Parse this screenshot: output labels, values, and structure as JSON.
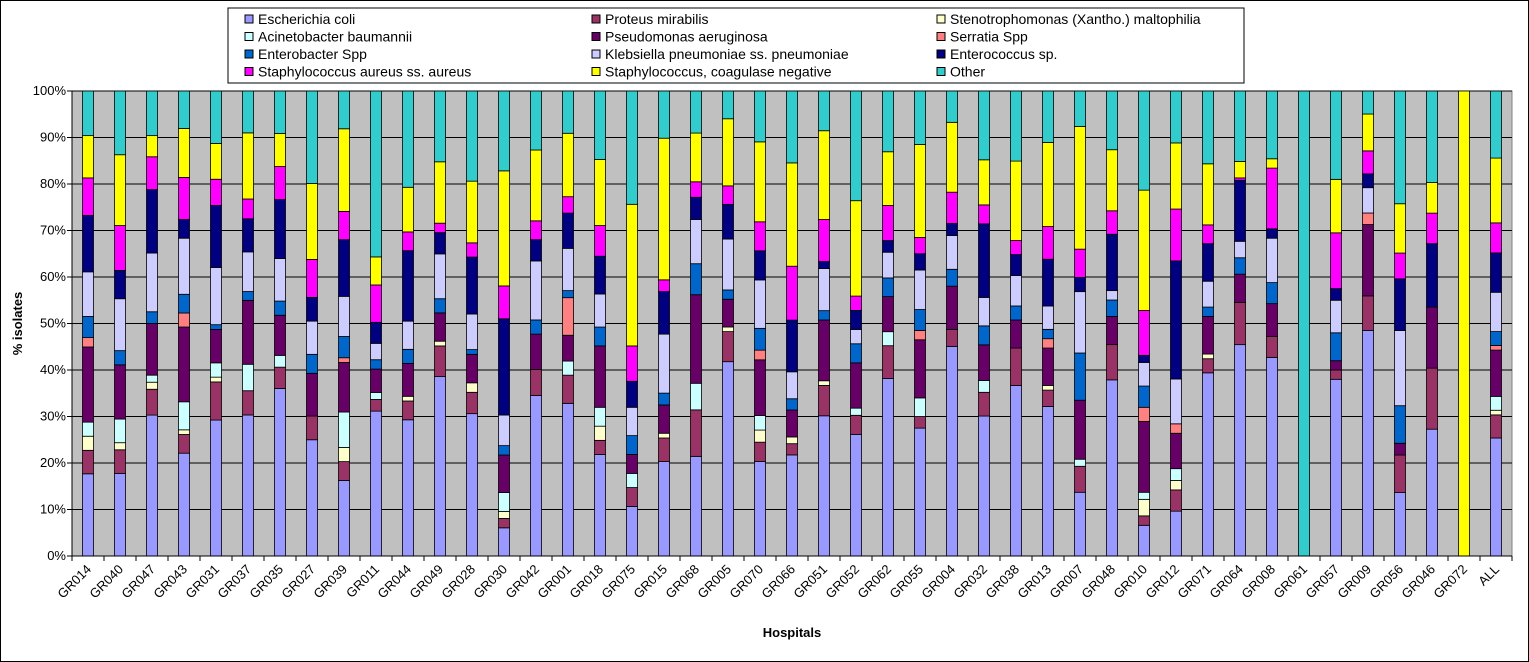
{
  "chart_data": {
    "type": "bar",
    "stacked": "percent",
    "xlabel": "Hospitals",
    "ylabel": "% isolates",
    "ylim": [
      0,
      100
    ],
    "yticks": [
      "0%",
      "10%",
      "20%",
      "30%",
      "40%",
      "50%",
      "60%",
      "70%",
      "80%",
      "90%",
      "100%"
    ],
    "grid": true,
    "legend_position": "top",
    "categories": [
      "GR014",
      "GR040",
      "GR047",
      "GR043",
      "GR031",
      "GR037",
      "GR035",
      "GR027",
      "GR039",
      "GR011",
      "GR044",
      "GR049",
      "GR028",
      "GR030",
      "GR042",
      "GR001",
      "GR018",
      "GR075",
      "GR015",
      "GR068",
      "GR005",
      "GR070",
      "GR066",
      "GR051",
      "GR052",
      "GR062",
      "GR055",
      "GR004",
      "GR032",
      "GR038",
      "GR013",
      "GR007",
      "GR048",
      "GR010",
      "GR012",
      "GR071",
      "GR064",
      "GR008",
      "GR061",
      "GR057",
      "GR009",
      "GR056",
      "GR046",
      "GR072",
      "ALL"
    ],
    "series": [
      {
        "name": "Escherichia coli",
        "color": "#9999FF",
        "values": [
          17.5,
          17.5,
          30,
          22,
          28.5,
          32,
          35.5,
          24.5,
          16,
          31,
          29,
          38,
          30,
          6,
          34,
          32.5,
          21.5,
          10.5,
          20,
          22.5,
          42,
          19.5,
          22.5,
          30,
          25.5,
          38,
          27.5,
          43.5,
          29.5,
          36.5,
          32,
          13.5,
          37.5,
          6.5,
          9.5,
          39,
          45,
          42.5,
          0,
          38,
          49,
          13.5,
          27,
          0,
          25.5
        ]
      },
      {
        "name": "Proteus mirabilis",
        "color": "#993366",
        "values": [
          5,
          5,
          5.5,
          4,
          8,
          5.5,
          4.5,
          5,
          4,
          2.5,
          4,
          6.5,
          4.5,
          2,
          5.5,
          6,
          3,
          4,
          5,
          10.5,
          6.5,
          4,
          2.5,
          6.5,
          4,
          7,
          2.5,
          3.5,
          5,
          8,
          3.5,
          5.5,
          7.5,
          2,
          4.5,
          3,
          9,
          4.5,
          0,
          2,
          7.5,
          8,
          13,
          0,
          5
        ]
      },
      {
        "name": "Stenotrophomonas (Xantho.) maltophilia",
        "color": "#FFFFCC",
        "values": [
          3,
          1.5,
          1.5,
          1,
          1,
          0,
          0,
          0,
          3,
          0,
          1,
          1,
          2,
          1.5,
          0,
          0,
          3,
          0,
          1,
          0,
          1,
          2.5,
          1.5,
          1,
          0,
          0,
          0,
          0,
          0,
          0,
          1,
          0,
          0,
          3.5,
          2,
          1,
          0,
          0,
          0,
          0,
          0,
          0,
          0,
          0,
          1
        ]
      },
      {
        "name": "Acinetobacter baumannii",
        "color": "#CCFFFF",
        "values": [
          3,
          5,
          1.5,
          6,
          3,
          6,
          2.5,
          0,
          7.5,
          1.5,
          0,
          0,
          0,
          4,
          0,
          3,
          4,
          3,
          0,
          6,
          0,
          3,
          0,
          0,
          1.5,
          3,
          4,
          0,
          2.5,
          0,
          0,
          1.5,
          0,
          1.5,
          2.5,
          0,
          0,
          0,
          0,
          0,
          0,
          0,
          0,
          0,
          3
        ]
      },
      {
        "name": "Pseudomonas aeruginosa",
        "color": "#660066",
        "values": [
          16,
          11.5,
          11,
          16,
          7,
          14.5,
          8.5,
          9,
          10.5,
          5,
          7,
          6,
          6,
          8,
          7.5,
          5.5,
          13,
          4,
          6,
          20,
          6,
          11.5,
          6,
          13,
          9.5,
          7.5,
          12.5,
          9,
          7.5,
          6,
          8,
          12.5,
          6,
          15,
          7.5,
          8,
          6,
          7,
          0,
          2,
          15.5,
          2.5,
          13,
          0,
          10
        ]
      },
      {
        "name": "Serratia Spp",
        "color": "#FF8080",
        "values": [
          2,
          0,
          0,
          3,
          0,
          0,
          0,
          0,
          1,
          0,
          0,
          0,
          0,
          0,
          0,
          8,
          0,
          0,
          0,
          0,
          0,
          2,
          0,
          0,
          0,
          0,
          2,
          0,
          0,
          0,
          2,
          0,
          0,
          3,
          2,
          0,
          0,
          0,
          0,
          0,
          2.5,
          0,
          0,
          0,
          1
        ]
      },
      {
        "name": "Enterobacter Spp",
        "color": "#0066CC",
        "values": [
          4.5,
          3,
          2.5,
          4,
          1,
          2,
          3,
          4,
          4.5,
          2,
          3,
          3,
          1,
          2,
          3,
          1.5,
          4,
          4,
          2.5,
          7,
          2,
          4.5,
          2.5,
          2,
          4,
          4,
          4.5,
          3.5,
          4,
          3,
          2,
          10,
          3.5,
          4.5,
          0,
          2,
          3.5,
          4.5,
          0,
          6,
          0,
          8,
          0,
          0,
          3
        ]
      },
      {
        "name": "Klebsiella pneumoniae ss. pneumoniae",
        "color": "#CCCCFF",
        "values": [
          9.5,
          11,
          12.5,
          12,
          12,
          9,
          9,
          7,
          8.5,
          3.5,
          6,
          9.5,
          7.5,
          6.5,
          12.5,
          9,
          7,
          6,
          12.5,
          10,
          11,
          10,
          6,
          9,
          3,
          5.5,
          8.5,
          7,
          6,
          6.5,
          5,
          13,
          2,
          5,
          9.5,
          5.5,
          3.5,
          9.5,
          0,
          7,
          5.5,
          16,
          0,
          0,
          8.5
        ]
      },
      {
        "name": "Enterococcus sp.",
        "color": "#000080",
        "values": [
          12,
          6,
          13.5,
          4,
          13,
          7.5,
          12.5,
          5,
          12,
          4.5,
          15,
          4.5,
          12,
          20.5,
          4.5,
          7.5,
          8,
          5.5,
          9,
          5,
          7.5,
          6,
          11.5,
          1.5,
          4,
          2.5,
          3.5,
          2.5,
          15.5,
          4.5,
          10,
          3,
          12,
          1.5,
          25,
          8,
          13,
          2,
          0,
          2.5,
          3,
          11,
          13.5,
          0,
          8.5
        ]
      },
      {
        "name": "Staphylococcus aureus ss. aureus",
        "color": "#FF00FF",
        "values": [
          8,
          9.5,
          7,
          9,
          5.5,
          4.5,
          7,
          8,
          6,
          8,
          4,
          2,
          3,
          7,
          4,
          3.5,
          6.5,
          7.5,
          2.5,
          3.5,
          4,
          6,
          12,
          9,
          3,
          7.5,
          3.5,
          6.5,
          4,
          3,
          7,
          6,
          5,
          9.5,
          11,
          4,
          0.5,
          13,
          0,
          12,
          5,
          5.5,
          6.5,
          0,
          6.5
        ]
      },
      {
        "name": "Staphylococcus, coagulase negative",
        "color": "#FFFF00",
        "values": [
          9,
          15,
          4.5,
          10.5,
          7.5,
          15,
          7,
          16,
          17.5,
          6,
          9.5,
          13,
          13,
          24.5,
          15,
          13.5,
          14,
          30,
          30,
          11,
          14.5,
          16.5,
          23,
          19,
          20,
          11.5,
          20,
          14.5,
          9.5,
          17,
          18,
          26,
          13,
          25.5,
          14,
          13,
          3.5,
          2,
          0,
          11.5,
          8,
          10.5,
          6.5,
          100,
          14
        ]
      },
      {
        "name": "Other",
        "color": "#33CCCC",
        "values": [
          9.5,
          13.5,
          9.5,
          8,
          11,
          9.5,
          9,
          19.5,
          8,
          35.5,
          20.5,
          15,
          19,
          17,
          12.5,
          9,
          14.5,
          24,
          10,
          9.5,
          6,
          10.5,
          16,
          8.5,
          23,
          13,
          11.5,
          6.5,
          14.5,
          15,
          11,
          7.5,
          12.5,
          21,
          11,
          15.5,
          15,
          14.5,
          100,
          19,
          5,
          24,
          19.5,
          0,
          14.5
        ]
      }
    ]
  }
}
